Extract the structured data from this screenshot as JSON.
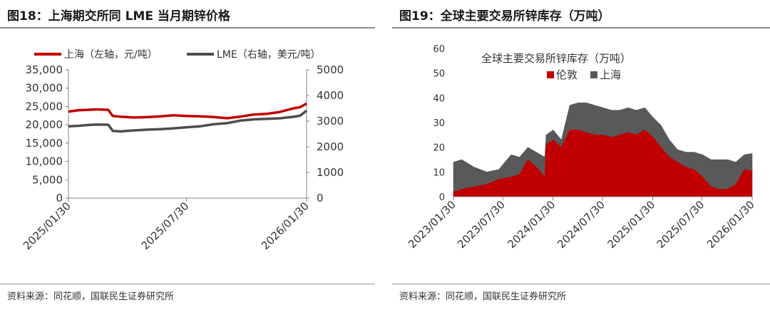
{
  "left_panel": {
    "title": "图18：上海期交所同 LME 当月期锌价格",
    "source": "资料来源：同花顺，国联民生证券研究所"
  },
  "right_panel": {
    "title": "图19：全球主要交易所锌库存（万吨）",
    "source": "资料来源：同花顺，国联民生证券研究所"
  },
  "chart_data": [
    {
      "type": "line",
      "title": "",
      "x_ticks": [
        "2025/01/30",
        "2025/07/30",
        "2026/01/30"
      ],
      "x_range": [
        "2025/01/30",
        "2026/01/30"
      ],
      "y_left": {
        "ylim": [
          0,
          35000
        ],
        "ticks": [
          "0",
          "5,000",
          "10,000",
          "15,000",
          "20,000",
          "25,000",
          "30,000",
          "35,000"
        ]
      },
      "y_right": {
        "ylim": [
          0,
          5000
        ],
        "ticks": [
          "0",
          "1000",
          "2000",
          "3000",
          "4000",
          "5000"
        ]
      },
      "grid": false,
      "legend_position": "top",
      "series": [
        {
          "name": "上海（左轴，元/吨）",
          "axis": "left",
          "color": "#c00000",
          "x": [
            "2025/01/30",
            "2025/02/15",
            "2025/03/01",
            "2025/03/15",
            "2025/04/01",
            "2025/04/08",
            "2025/04/20",
            "2025/05/10",
            "2025/06/01",
            "2025/06/20",
            "2025/07/10",
            "2025/07/30",
            "2025/08/20",
            "2025/09/10",
            "2025/09/30",
            "2025/10/20",
            "2025/11/10",
            "2025/11/30",
            "2025/12/20",
            "2026/01/10",
            "2026/01/20",
            "2026/01/30"
          ],
          "values": [
            23600,
            24000,
            24100,
            24200,
            24100,
            22400,
            22200,
            22000,
            22100,
            22300,
            22600,
            22400,
            22300,
            22100,
            21800,
            22200,
            22800,
            23000,
            23500,
            24500,
            24800,
            25800
          ]
        },
        {
          "name": "LME（右轴，美元/吨）",
          "axis": "right",
          "color": "#4d4d4d",
          "x": [
            "2025/01/30",
            "2025/02/15",
            "2025/03/01",
            "2025/03/15",
            "2025/04/01",
            "2025/04/08",
            "2025/04/20",
            "2025/05/10",
            "2025/06/01",
            "2025/06/20",
            "2025/07/10",
            "2025/07/30",
            "2025/08/20",
            "2025/09/10",
            "2025/09/30",
            "2025/10/20",
            "2025/11/10",
            "2025/11/30",
            "2025/12/20",
            "2026/01/10",
            "2026/01/20",
            "2026/01/30"
          ],
          "values": [
            2800,
            2820,
            2850,
            2870,
            2860,
            2620,
            2600,
            2640,
            2670,
            2690,
            2720,
            2760,
            2800,
            2880,
            2920,
            3020,
            3070,
            3090,
            3110,
            3170,
            3210,
            3410
          ]
        }
      ]
    },
    {
      "type": "area",
      "title": "全球主要交易所锌库存（万吨）",
      "x_ticks": [
        "2023/01/30",
        "2023/07/30",
        "2024/01/30",
        "2024/07/30",
        "2025/01/30",
        "2025/07/30",
        "2026/01/30"
      ],
      "x_range": [
        "2023/01/30",
        "2026/01/30"
      ],
      "ylim": [
        0,
        60
      ],
      "y_ticks": [
        "0",
        "10",
        "20",
        "30",
        "40",
        "50",
        "60"
      ],
      "grid": false,
      "legend_position": "top",
      "stacked": true,
      "series": [
        {
          "name": "伦敦",
          "color": "#c00000",
          "x": [
            "2023/01/30",
            "2023/03/01",
            "2023/04/15",
            "2023/06/01",
            "2023/07/15",
            "2023/08/30",
            "2023/09/30",
            "2023/10/30",
            "2023/11/30",
            "2023/12/31",
            "2024/01/05",
            "2024/01/31",
            "2024/03/01",
            "2024/04/01",
            "2024/05/01",
            "2024/06/01",
            "2024/07/01",
            "2024/08/01",
            "2024/09/01",
            "2024/10/01",
            "2024/11/01",
            "2024/12/01",
            "2025/01/01",
            "2025/02/01",
            "2025/03/01",
            "2025/04/01",
            "2025/05/01",
            "2025/06/01",
            "2025/07/01",
            "2025/08/01",
            "2025/09/01",
            "2025/10/01",
            "2025/11/01",
            "2025/12/01",
            "2026/01/01",
            "2026/01/30"
          ],
          "values": [
            2,
            3,
            4,
            5,
            7,
            8,
            9,
            15,
            12,
            8,
            21,
            23,
            20,
            27,
            27,
            26,
            25,
            25,
            24,
            25,
            26,
            25,
            27,
            24,
            20,
            16,
            14,
            12,
            11,
            8,
            4,
            3,
            3,
            5,
            11,
            10.5
          ]
        },
        {
          "name": "上海",
          "color": "#595959",
          "x": [
            "2023/01/30",
            "2023/03/01",
            "2023/04/15",
            "2023/06/01",
            "2023/07/15",
            "2023/08/30",
            "2023/09/30",
            "2023/10/30",
            "2023/11/30",
            "2023/12/31",
            "2024/01/05",
            "2024/01/31",
            "2024/03/01",
            "2024/04/01",
            "2024/05/01",
            "2024/06/01",
            "2024/07/01",
            "2024/08/01",
            "2024/09/01",
            "2024/10/01",
            "2024/11/01",
            "2024/12/01",
            "2025/01/01",
            "2025/02/01",
            "2025/03/01",
            "2025/04/01",
            "2025/05/01",
            "2025/06/01",
            "2025/07/01",
            "2025/08/01",
            "2025/09/01",
            "2025/10/01",
            "2025/11/01",
            "2025/12/01",
            "2026/01/01",
            "2026/01/30"
          ],
          "values": [
            12,
            12,
            8,
            5,
            4,
            9,
            7,
            5,
            6,
            8,
            4,
            4,
            3,
            10,
            11,
            12,
            12,
            11,
            11,
            10,
            10,
            10,
            9,
            8,
            9,
            7,
            5,
            6,
            7,
            9,
            11,
            12,
            12,
            9,
            6,
            7
          ]
        }
      ]
    }
  ]
}
